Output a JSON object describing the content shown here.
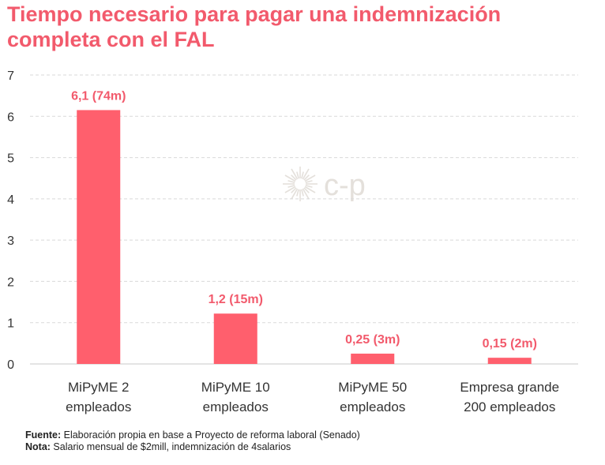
{
  "title_lines": [
    "Tiempo necesario para pagar una indemnización",
    "completa con el FAL"
  ],
  "colors": {
    "accent": "#f25a6c",
    "bar": "#ff5f6d",
    "grid": "#d9d9d9",
    "axis": "#c8c8c8",
    "tick_text": "#333333",
    "logo": "#e4e0db"
  },
  "logo": {
    "icon": "sunburst-icon",
    "text": "c-p"
  },
  "chart_data": {
    "type": "bar",
    "title": "Tiempo necesario para pagar una indemnización completa con el FAL",
    "categories": [
      [
        "MiPyME 2",
        "empleados"
      ],
      [
        "MiPyME 10",
        "empleados"
      ],
      [
        "MiPyME 50",
        "empleados"
      ],
      [
        "Empresa grande",
        "200 empleados"
      ]
    ],
    "values": [
      6.15,
      1.22,
      0.25,
      0.15
    ],
    "data_labels": [
      "6,1 (74m)",
      "1,2 (15m)",
      "0,25 (3m)",
      "0,15 (2m)"
    ],
    "ylim": [
      0,
      7
    ],
    "yticks": [
      0,
      1,
      2,
      3,
      4,
      5,
      6,
      7
    ],
    "grid": true,
    "xlabel": "",
    "ylabel": ""
  },
  "footnote": {
    "source_label": "Fuente:",
    "source_text": " Elaboración propia en base a Proyecto de reforma laboral (Senado)",
    "note_label": "Nota:",
    "note_text": " Salario mensual de $2mill, indemnización de 4salarios"
  }
}
